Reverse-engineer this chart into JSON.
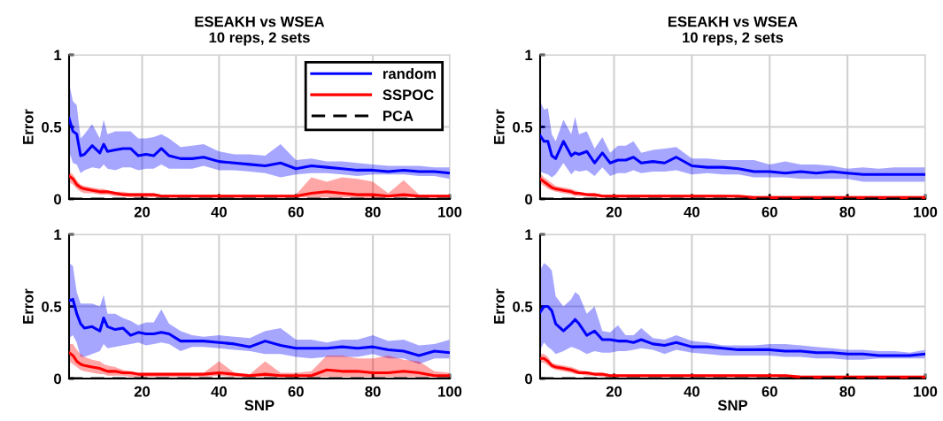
{
  "chart_data": [
    {
      "type": "line",
      "title": "ESEAKH vs WSEA",
      "subtitle": "10 reps, 2 sets",
      "ylabel": "Error",
      "x": [
        1,
        2,
        3,
        4,
        5,
        7,
        9,
        10,
        11,
        13,
        15,
        17,
        19,
        21,
        23,
        25,
        27,
        30,
        33,
        36,
        40,
        44,
        48,
        52,
        56,
        60,
        64,
        68,
        72,
        76,
        80,
        84,
        88,
        92,
        96,
        100
      ],
      "xlim": [
        1,
        100
      ],
      "xticks": [
        20,
        40,
        60,
        80,
        100
      ],
      "ylim": [
        0,
        1
      ],
      "yticks": [
        0,
        0.5,
        1
      ],
      "grid": true,
      "legend": "top right",
      "series": [
        {
          "name": "random",
          "color": "#0000ff",
          "line_style": "solid",
          "values": [
            0.56,
            0.47,
            0.45,
            0.3,
            0.31,
            0.37,
            0.32,
            0.38,
            0.33,
            0.34,
            0.35,
            0.35,
            0.3,
            0.31,
            0.3,
            0.35,
            0.3,
            0.28,
            0.28,
            0.29,
            0.26,
            0.25,
            0.24,
            0.23,
            0.25,
            0.21,
            0.23,
            0.22,
            0.21,
            0.2,
            0.2,
            0.19,
            0.2,
            0.19,
            0.19,
            0.18
          ],
          "upper": [
            0.8,
            0.68,
            0.65,
            0.42,
            0.45,
            0.52,
            0.42,
            0.55,
            0.45,
            0.47,
            0.47,
            0.47,
            0.42,
            0.42,
            0.43,
            0.45,
            0.42,
            0.36,
            0.37,
            0.38,
            0.33,
            0.31,
            0.31,
            0.3,
            0.38,
            0.27,
            0.28,
            0.26,
            0.26,
            0.25,
            0.24,
            0.23,
            0.23,
            0.23,
            0.22,
            0.22
          ],
          "lower": [
            0.33,
            0.25,
            0.24,
            0.18,
            0.2,
            0.22,
            0.21,
            0.24,
            0.21,
            0.2,
            0.22,
            0.22,
            0.2,
            0.21,
            0.21,
            0.24,
            0.21,
            0.21,
            0.21,
            0.23,
            0.2,
            0.2,
            0.19,
            0.18,
            0.15,
            0.17,
            0.18,
            0.18,
            0.17,
            0.16,
            0.17,
            0.17,
            0.17,
            0.16,
            0.16,
            0.14
          ]
        },
        {
          "name": "SSPOC",
          "color": "#ff0000",
          "line_style": "solid",
          "values": [
            0.16,
            0.14,
            0.1,
            0.08,
            0.07,
            0.06,
            0.05,
            0.05,
            0.05,
            0.04,
            0.03,
            0.03,
            0.03,
            0.03,
            0.03,
            0.02,
            0.02,
            0.02,
            0.02,
            0.02,
            0.02,
            0.02,
            0.02,
            0.02,
            0.02,
            0.02,
            0.04,
            0.05,
            0.04,
            0.03,
            0.03,
            0.02,
            0.03,
            0.02,
            0.02,
            0.02
          ],
          "upper": [
            0.19,
            0.17,
            0.13,
            0.1,
            0.09,
            0.08,
            0.07,
            0.07,
            0.06,
            0.05,
            0.05,
            0.04,
            0.04,
            0.04,
            0.04,
            0.03,
            0.03,
            0.03,
            0.03,
            0.03,
            0.03,
            0.03,
            0.03,
            0.03,
            0.03,
            0.03,
            0.15,
            0.12,
            0.15,
            0.14,
            0.12,
            0.04,
            0.13,
            0.03,
            0.03,
            0.03
          ],
          "lower": [
            0.12,
            0.1,
            0.07,
            0.05,
            0.04,
            0.04,
            0.03,
            0.03,
            0.03,
            0.02,
            0.02,
            0.01,
            0.01,
            0.01,
            0.01,
            0.01,
            0.01,
            0.01,
            0.01,
            0.01,
            0.01,
            0.01,
            0.01,
            0.01,
            0.01,
            0.01,
            0.01,
            0.01,
            0.01,
            0.01,
            0,
            0.01,
            0.01,
            0.01,
            0.01,
            0.01
          ]
        },
        {
          "name": "PCA",
          "color": "#000000",
          "line_style": "dashed",
          "values": [
            0,
            0,
            0,
            0,
            0,
            0,
            0,
            0,
            0,
            0,
            0,
            0,
            0,
            0,
            0,
            0,
            0,
            0,
            0,
            0,
            0,
            0,
            0,
            0,
            0,
            0,
            0,
            0,
            0,
            0,
            0,
            0,
            0,
            0,
            0,
            0
          ]
        }
      ]
    },
    {
      "type": "line",
      "title": "ESEAKH vs WSEA",
      "subtitle": "10 reps, 2 sets",
      "ylabel": "Error",
      "x": [
        1,
        2,
        3,
        4,
        5,
        7,
        9,
        10,
        11,
        13,
        15,
        17,
        19,
        21,
        23,
        25,
        27,
        30,
        33,
        36,
        40,
        44,
        48,
        52,
        56,
        60,
        64,
        68,
        72,
        76,
        80,
        84,
        88,
        92,
        96,
        100
      ],
      "xlim": [
        1,
        100
      ],
      "xticks": [
        20,
        40,
        60,
        80,
        100
      ],
      "ylim": [
        0,
        1
      ],
      "yticks": [
        0,
        0.5,
        1
      ],
      "grid": true,
      "series": [
        {
          "color": "#0000ff",
          "line_style": "solid",
          "values": [
            0.44,
            0.4,
            0.4,
            0.3,
            0.28,
            0.4,
            0.3,
            0.32,
            0.31,
            0.33,
            0.25,
            0.32,
            0.25,
            0.27,
            0.27,
            0.29,
            0.25,
            0.26,
            0.25,
            0.29,
            0.23,
            0.22,
            0.22,
            0.21,
            0.19,
            0.19,
            0.18,
            0.19,
            0.18,
            0.19,
            0.18,
            0.17,
            0.17,
            0.17,
            0.17,
            0.17
          ],
          "upper": [
            0.68,
            0.62,
            0.63,
            0.45,
            0.4,
            0.55,
            0.45,
            0.57,
            0.45,
            0.47,
            0.35,
            0.43,
            0.32,
            0.37,
            0.37,
            0.4,
            0.32,
            0.34,
            0.35,
            0.36,
            0.28,
            0.28,
            0.27,
            0.27,
            0.27,
            0.24,
            0.26,
            0.24,
            0.24,
            0.23,
            0.21,
            0.22,
            0.21,
            0.22,
            0.22,
            0.22
          ],
          "lower": [
            0.19,
            0.18,
            0.17,
            0.15,
            0.17,
            0.25,
            0.17,
            0.2,
            0.19,
            0.2,
            0.16,
            0.22,
            0.16,
            0.18,
            0.18,
            0.2,
            0.18,
            0.19,
            0.19,
            0.2,
            0.17,
            0.18,
            0.17,
            0.17,
            0.15,
            0.15,
            0.15,
            0.14,
            0.14,
            0.14,
            0.14,
            0.12,
            0.12,
            0.12,
            0.12,
            0.12
          ]
        },
        {
          "color": "#ff0000",
          "line_style": "solid",
          "values": [
            0.14,
            0.12,
            0.1,
            0.08,
            0.07,
            0.06,
            0.05,
            0.04,
            0.04,
            0.03,
            0.03,
            0.02,
            0.02,
            0.02,
            0.02,
            0.02,
            0.02,
            0.02,
            0.02,
            0.02,
            0.02,
            0.02,
            0.02,
            0.02,
            0.01,
            0.01,
            0.01,
            0.01,
            0.01,
            0.01,
            0.01,
            0.01,
            0.01,
            0.01,
            0.01,
            0.01
          ],
          "upper": [
            0.18,
            0.15,
            0.13,
            0.11,
            0.09,
            0.08,
            0.07,
            0.06,
            0.05,
            0.04,
            0.04,
            0.03,
            0.03,
            0.03,
            0.03,
            0.03,
            0.03,
            0.03,
            0.03,
            0.03,
            0.03,
            0.03,
            0.03,
            0.02,
            0.02,
            0.02,
            0.02,
            0.02,
            0.02,
            0.02,
            0.02,
            0.02,
            0.02,
            0.02,
            0.02,
            0.02
          ],
          "lower": [
            0.11,
            0.09,
            0.07,
            0.06,
            0.05,
            0.04,
            0.03,
            0.02,
            0.02,
            0.02,
            0.01,
            0.01,
            0.01,
            0.01,
            0.01,
            0.01,
            0.01,
            0.01,
            0.01,
            0.01,
            0.01,
            0.01,
            0.01,
            0.01,
            0.01,
            0,
            0,
            0,
            0,
            0,
            0,
            0,
            0,
            0,
            0,
            0
          ]
        },
        {
          "color": "#000000",
          "line_style": "dashed",
          "values": [
            0,
            0,
            0,
            0,
            0,
            0,
            0,
            0,
            0,
            0,
            0,
            0,
            0,
            0,
            0,
            0,
            0,
            0,
            0,
            0,
            0,
            0,
            0,
            0,
            0,
            0,
            0,
            0,
            0,
            0,
            0,
            0,
            0,
            0,
            0,
            0
          ]
        }
      ]
    },
    {
      "type": "line",
      "xlabel": "SNP",
      "ylabel": "Error",
      "x": [
        1,
        2,
        3,
        4,
        5,
        7,
        9,
        10,
        11,
        13,
        15,
        17,
        19,
        21,
        23,
        25,
        27,
        30,
        33,
        36,
        40,
        44,
        48,
        52,
        56,
        60,
        64,
        68,
        72,
        76,
        80,
        84,
        88,
        92,
        96,
        100
      ],
      "xlim": [
        1,
        100
      ],
      "xticks": [
        20,
        40,
        60,
        80,
        100
      ],
      "ylim": [
        0,
        1
      ],
      "yticks": [
        0,
        0.5,
        1
      ],
      "grid": true,
      "series": [
        {
          "color": "#0000ff",
          "line_style": "solid",
          "values": [
            0.54,
            0.55,
            0.45,
            0.38,
            0.35,
            0.36,
            0.33,
            0.42,
            0.36,
            0.34,
            0.35,
            0.3,
            0.32,
            0.31,
            0.31,
            0.32,
            0.31,
            0.26,
            0.26,
            0.26,
            0.25,
            0.24,
            0.22,
            0.26,
            0.23,
            0.21,
            0.21,
            0.21,
            0.22,
            0.21,
            0.22,
            0.2,
            0.19,
            0.16,
            0.19,
            0.18
          ],
          "upper": [
            0.8,
            0.78,
            0.6,
            0.52,
            0.52,
            0.52,
            0.5,
            0.58,
            0.45,
            0.45,
            0.42,
            0.4,
            0.37,
            0.39,
            0.39,
            0.48,
            0.38,
            0.33,
            0.3,
            0.29,
            0.3,
            0.29,
            0.28,
            0.33,
            0.35,
            0.27,
            0.27,
            0.25,
            0.27,
            0.27,
            0.3,
            0.26,
            0.27,
            0.23,
            0.24,
            0.27
          ],
          "lower": [
            0.28,
            0.3,
            0.25,
            0.15,
            0.15,
            0.17,
            0.19,
            0.24,
            0.21,
            0.22,
            0.23,
            0.24,
            0.25,
            0.23,
            0.24,
            0.25,
            0.24,
            0.19,
            0.22,
            0.22,
            0.21,
            0.2,
            0.19,
            0.17,
            0.17,
            0.15,
            0.14,
            0.15,
            0.15,
            0.15,
            0.17,
            0.14,
            0.14,
            0.1,
            0.14,
            0.14
          ]
        },
        {
          "color": "#ff0000",
          "line_style": "solid",
          "values": [
            0.18,
            0.16,
            0.12,
            0.1,
            0.09,
            0.08,
            0.07,
            0.06,
            0.05,
            0.05,
            0.04,
            0.04,
            0.03,
            0.03,
            0.03,
            0.03,
            0.03,
            0.03,
            0.03,
            0.03,
            0.04,
            0.03,
            0.02,
            0.03,
            0.02,
            0.02,
            0.02,
            0.06,
            0.05,
            0.05,
            0.04,
            0.04,
            0.05,
            0.04,
            0.02,
            0.02
          ],
          "upper": [
            0.24,
            0.24,
            0.2,
            0.17,
            0.15,
            0.13,
            0.12,
            0.1,
            0.09,
            0.08,
            0.06,
            0.05,
            0.04,
            0.04,
            0.04,
            0.04,
            0.04,
            0.04,
            0.04,
            0.04,
            0.12,
            0.04,
            0.03,
            0.12,
            0.04,
            0.04,
            0.05,
            0.16,
            0.16,
            0.14,
            0.14,
            0.16,
            0.13,
            0.12,
            0.05,
            0.04
          ],
          "lower": [
            0.12,
            0.1,
            0.08,
            0.06,
            0.05,
            0.04,
            0.03,
            0.03,
            0.02,
            0.02,
            0.02,
            0.01,
            0.01,
            0.01,
            0.01,
            0.01,
            0.01,
            0.01,
            0.01,
            0.01,
            0.02,
            0.01,
            0.01,
            0.01,
            0.01,
            0.01,
            0.01,
            0.01,
            0.01,
            0.01,
            0.01,
            0.01,
            0.01,
            0.01,
            0.01,
            0.01
          ]
        },
        {
          "color": "#000000",
          "line_style": "dashed",
          "values": [
            0,
            0,
            0,
            0,
            0,
            0,
            0,
            0,
            0,
            0,
            0,
            0,
            0,
            0,
            0,
            0,
            0,
            0,
            0,
            0,
            0,
            0,
            0,
            0,
            0,
            0,
            0,
            0,
            0,
            0,
            0,
            0,
            0,
            0,
            0,
            0
          ]
        }
      ]
    },
    {
      "type": "line",
      "xlabel": "SNP",
      "ylabel": "Error",
      "x": [
        1,
        2,
        3,
        4,
        5,
        7,
        9,
        10,
        11,
        13,
        15,
        17,
        19,
        21,
        23,
        25,
        27,
        30,
        33,
        36,
        40,
        44,
        48,
        52,
        56,
        60,
        64,
        68,
        72,
        76,
        80,
        84,
        88,
        92,
        96,
        100
      ],
      "xlim": [
        1,
        100
      ],
      "xticks": [
        20,
        40,
        60,
        80,
        100
      ],
      "ylim": [
        0,
        1
      ],
      "yticks": [
        0,
        0.5,
        1
      ],
      "grid": true,
      "series": [
        {
          "color": "#0000ff",
          "line_style": "solid",
          "values": [
            0.46,
            0.5,
            0.5,
            0.47,
            0.38,
            0.33,
            0.38,
            0.41,
            0.38,
            0.3,
            0.33,
            0.27,
            0.27,
            0.26,
            0.26,
            0.25,
            0.27,
            0.24,
            0.23,
            0.25,
            0.22,
            0.22,
            0.21,
            0.2,
            0.2,
            0.2,
            0.19,
            0.19,
            0.18,
            0.18,
            0.17,
            0.17,
            0.16,
            0.16,
            0.16,
            0.17
          ],
          "upper": [
            0.75,
            0.8,
            0.78,
            0.75,
            0.57,
            0.5,
            0.55,
            0.6,
            0.58,
            0.45,
            0.5,
            0.33,
            0.32,
            0.37,
            0.3,
            0.3,
            0.35,
            0.28,
            0.27,
            0.3,
            0.26,
            0.25,
            0.23,
            0.23,
            0.23,
            0.24,
            0.24,
            0.23,
            0.22,
            0.21,
            0.2,
            0.2,
            0.19,
            0.19,
            0.18,
            0.2
          ],
          "lower": [
            0.2,
            0.25,
            0.22,
            0.2,
            0.17,
            0.19,
            0.22,
            0.21,
            0.2,
            0.17,
            0.19,
            0.18,
            0.18,
            0.19,
            0.19,
            0.2,
            0.21,
            0.2,
            0.17,
            0.2,
            0.18,
            0.17,
            0.16,
            0.16,
            0.16,
            0.16,
            0.15,
            0.15,
            0.14,
            0.14,
            0.13,
            0.13,
            0.14,
            0.14,
            0.14,
            0.14
          ]
        },
        {
          "color": "#ff0000",
          "line_style": "solid",
          "values": [
            0.14,
            0.14,
            0.12,
            0.09,
            0.08,
            0.07,
            0.06,
            0.05,
            0.04,
            0.04,
            0.03,
            0.03,
            0.02,
            0.02,
            0.02,
            0.02,
            0.02,
            0.02,
            0.02,
            0.02,
            0.02,
            0.02,
            0.02,
            0.02,
            0.02,
            0.02,
            0.02,
            0.01,
            0.01,
            0.01,
            0.01,
            0.01,
            0.01,
            0.01,
            0.01,
            0.01
          ],
          "upper": [
            0.17,
            0.17,
            0.15,
            0.11,
            0.1,
            0.09,
            0.08,
            0.07,
            0.06,
            0.05,
            0.04,
            0.04,
            0.03,
            0.03,
            0.03,
            0.03,
            0.03,
            0.03,
            0.03,
            0.03,
            0.03,
            0.03,
            0.03,
            0.03,
            0.03,
            0.03,
            0.03,
            0.02,
            0.02,
            0.02,
            0.02,
            0.02,
            0.02,
            0.02,
            0.02,
            0.02
          ],
          "lower": [
            0.11,
            0.11,
            0.09,
            0.07,
            0.06,
            0.05,
            0.04,
            0.03,
            0.03,
            0.02,
            0.02,
            0.01,
            0.01,
            0.01,
            0.01,
            0.01,
            0.01,
            0.01,
            0.01,
            0.01,
            0.01,
            0.01,
            0.01,
            0.01,
            0.01,
            0.01,
            0.01,
            0.01,
            0.01,
            0.01,
            0.01,
            0.01,
            0.01,
            0.01,
            0.01,
            0.01
          ]
        },
        {
          "color": "#000000",
          "line_style": "dashed",
          "values": [
            0,
            0,
            0,
            0,
            0,
            0,
            0,
            0,
            0,
            0,
            0,
            0,
            0,
            0,
            0,
            0,
            0,
            0,
            0,
            0,
            0,
            0,
            0,
            0,
            0,
            0,
            0,
            0,
            0,
            0,
            0,
            0,
            0,
            0,
            0,
            0
          ]
        }
      ]
    }
  ]
}
